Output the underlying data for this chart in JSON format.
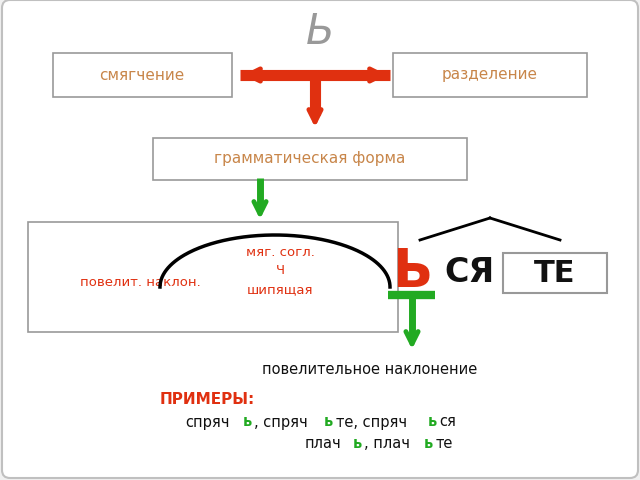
{
  "bg_color": "#ffffff",
  "outer_bg": "#f0f0f0",
  "border_color": "#c0c0c0",
  "title_letter": "Ь",
  "title_color": "#999999",
  "box_left_text": "смягчение",
  "box_right_text": "разделение",
  "box_text_color": "#c8864a",
  "box_border_color": "#999999",
  "gramm_text": "грамматическая форма",
  "gramm_color": "#c8864a",
  "arrow_red": "#e03010",
  "arrow_green": "#22aa22",
  "red_text_color": "#e03010",
  "green_text_color": "#22aa22",
  "black_text_color": "#111111",
  "b_letter": "Ь",
  "sya_text": "СЯ",
  "te_text": "ТЕ",
  "pov_text": "повелительное наклонение",
  "primery_label": "ПРИМЕРЫ:",
  "primery_color": "#e03010",
  "example_color": "#111111",
  "example_green": "#22aa22"
}
